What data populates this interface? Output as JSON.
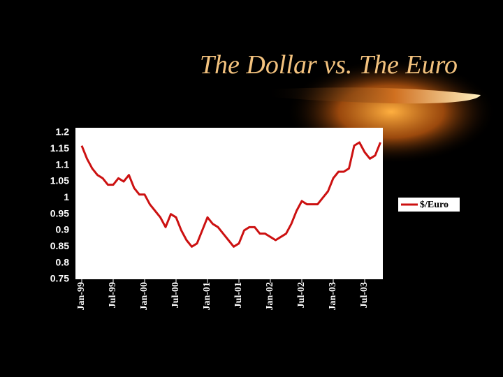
{
  "chart_data": {
    "type": "line",
    "title": "The Dollar vs. The Euro",
    "categories": [
      "Jan-99",
      null,
      null,
      null,
      null,
      null,
      "Jul-99",
      null,
      null,
      null,
      null,
      null,
      "Jan-00",
      null,
      null,
      null,
      null,
      null,
      "Jul-00",
      null,
      null,
      null,
      null,
      null,
      "Jan-01",
      null,
      null,
      null,
      null,
      null,
      "Jul-01",
      null,
      null,
      null,
      null,
      null,
      "Jan-02",
      null,
      null,
      null,
      null,
      null,
      "Jul-02",
      null,
      null,
      null,
      null,
      null,
      "Jan-03",
      null,
      null,
      null,
      null,
      null,
      "Jul-03",
      null,
      null,
      null
    ],
    "series": [
      {
        "name": "$/Euro",
        "color": "#cc1111",
        "values": [
          1.16,
          1.12,
          1.09,
          1.07,
          1.06,
          1.04,
          1.04,
          1.06,
          1.05,
          1.07,
          1.03,
          1.01,
          1.01,
          0.98,
          0.96,
          0.94,
          0.91,
          0.95,
          0.94,
          0.9,
          0.87,
          0.85,
          0.86,
          0.9,
          0.94,
          0.92,
          0.91,
          0.89,
          0.87,
          0.85,
          0.86,
          0.9,
          0.91,
          0.91,
          0.89,
          0.89,
          0.88,
          0.87,
          0.88,
          0.89,
          0.92,
          0.96,
          0.99,
          0.98,
          0.98,
          0.98,
          1.0,
          1.02,
          1.06,
          1.08,
          1.08,
          1.09,
          1.16,
          1.17,
          1.14,
          1.12,
          1.13,
          1.17
        ]
      }
    ],
    "ylim": [
      0.75,
      1.2
    ],
    "yticks": [
      0.75,
      0.8,
      0.85,
      0.9,
      0.95,
      1,
      1.05,
      1.1,
      1.15,
      1.2
    ],
    "grid": false,
    "legend": "right"
  }
}
